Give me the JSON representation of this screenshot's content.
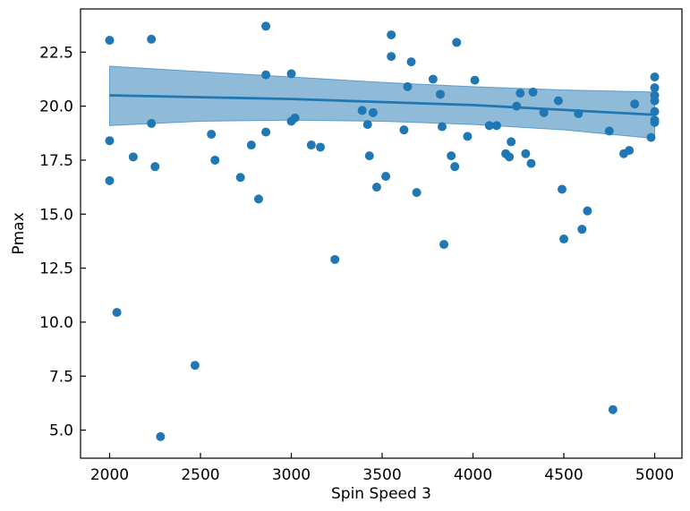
{
  "chart_data": {
    "type": "scatter",
    "title": "",
    "xlabel": "Spin Speed 3",
    "ylabel": "Pmax",
    "xlim": [
      1840,
      5150
    ],
    "ylim": [
      3.7,
      24.5
    ],
    "xticks": [
      2000,
      2500,
      3000,
      3500,
      4000,
      4500,
      5000
    ],
    "yticks": [
      5.0,
      7.5,
      10.0,
      12.5,
      15.0,
      17.5,
      20.0,
      22.5
    ],
    "xtick_labels": [
      "2000",
      "2500",
      "3000",
      "3500",
      "4000",
      "4500",
      "5000"
    ],
    "ytick_labels": [
      "5.0",
      "7.5",
      "10.0",
      "12.5",
      "15.0",
      "17.5",
      "20.0",
      "22.5"
    ],
    "grid": false,
    "legend": "none",
    "point_color": "#1f77b4",
    "line_color": "#1f77b4",
    "band_color": "#1f77b4",
    "points": [
      [
        2000,
        23.05
      ],
      [
        2000,
        18.4
      ],
      [
        2000,
        16.55
      ],
      [
        2040,
        10.45
      ],
      [
        2130,
        17.65
      ],
      [
        2230,
        23.1
      ],
      [
        2230,
        19.2
      ],
      [
        2250,
        17.2
      ],
      [
        2280,
        4.7
      ],
      [
        2470,
        8.0
      ],
      [
        2560,
        18.7
      ],
      [
        2580,
        17.5
      ],
      [
        2720,
        16.7
      ],
      [
        2780,
        18.2
      ],
      [
        2820,
        15.7
      ],
      [
        2860,
        23.7
      ],
      [
        2860,
        21.45
      ],
      [
        2860,
        18.8
      ],
      [
        3000,
        21.5
      ],
      [
        3000,
        19.3
      ],
      [
        3020,
        19.45
      ],
      [
        3110,
        18.2
      ],
      [
        3160,
        18.1
      ],
      [
        3240,
        12.9
      ],
      [
        3390,
        19.8
      ],
      [
        3420,
        19.15
      ],
      [
        3430,
        17.7
      ],
      [
        3450,
        19.7
      ],
      [
        3470,
        16.25
      ],
      [
        3520,
        16.75
      ],
      [
        3550,
        23.3
      ],
      [
        3550,
        22.3
      ],
      [
        3620,
        18.9
      ],
      [
        3640,
        20.9
      ],
      [
        3660,
        22.05
      ],
      [
        3690,
        16.0
      ],
      [
        3780,
        21.25
      ],
      [
        3820,
        20.55
      ],
      [
        3830,
        19.05
      ],
      [
        3840,
        13.6
      ],
      [
        3880,
        17.7
      ],
      [
        3900,
        17.2
      ],
      [
        3910,
        22.95
      ],
      [
        3970,
        18.6
      ],
      [
        4010,
        21.2
      ],
      [
        4090,
        19.1
      ],
      [
        4130,
        19.1
      ],
      [
        4180,
        17.8
      ],
      [
        4200,
        17.65
      ],
      [
        4210,
        18.35
      ],
      [
        4240,
        20.0
      ],
      [
        4260,
        20.6
      ],
      [
        4290,
        17.8
      ],
      [
        4320,
        17.35
      ],
      [
        4330,
        20.65
      ],
      [
        4390,
        19.7
      ],
      [
        4470,
        20.25
      ],
      [
        4490,
        16.15
      ],
      [
        4500,
        13.85
      ],
      [
        4580,
        19.65
      ],
      [
        4600,
        14.3
      ],
      [
        4630,
        15.15
      ],
      [
        4750,
        18.85
      ],
      [
        4770,
        5.95
      ],
      [
        4830,
        17.8
      ],
      [
        4860,
        17.95
      ],
      [
        4890,
        20.1
      ],
      [
        4980,
        18.55
      ],
      [
        5000,
        21.35
      ],
      [
        5000,
        20.85
      ],
      [
        5000,
        20.5
      ],
      [
        5000,
        20.25
      ],
      [
        5000,
        19.75
      ],
      [
        5000,
        19.35
      ],
      [
        5000,
        19.25
      ]
    ],
    "fit_line": [
      [
        2000,
        20.5
      ],
      [
        3000,
        20.33
      ],
      [
        4000,
        20.05
      ],
      [
        5000,
        19.6
      ]
    ],
    "confidence_band": {
      "x": [
        2000,
        2500,
        3000,
        3500,
        4000,
        4500,
        5000
      ],
      "upper": [
        21.85,
        21.6,
        21.35,
        21.1,
        20.9,
        20.75,
        20.65
      ],
      "lower": [
        19.1,
        19.3,
        19.35,
        19.3,
        19.15,
        18.9,
        18.5
      ]
    }
  }
}
